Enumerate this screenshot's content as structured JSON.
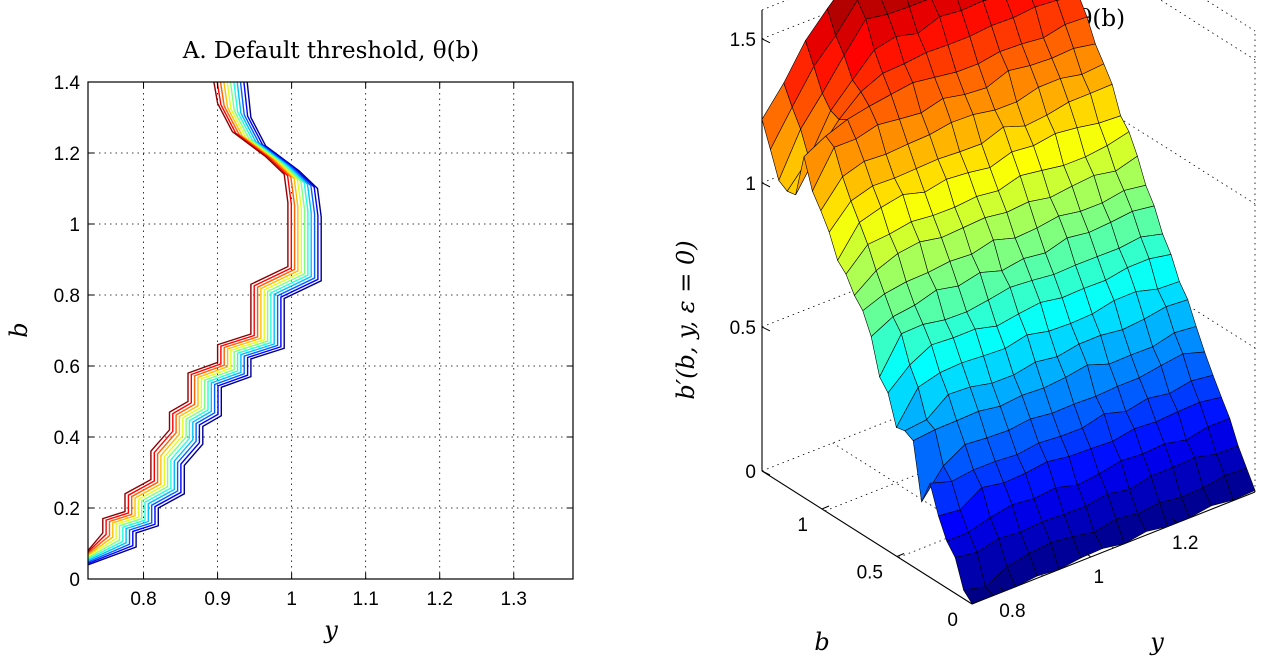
{
  "chart_data": [
    {
      "panel": "A",
      "type": "line",
      "title": "A. Default threshold, θ(b)",
      "xlabel": "y",
      "ylabel": "b",
      "xlim": [
        0.725,
        1.38
      ],
      "ylim": [
        0,
        1.4
      ],
      "xticks": [
        0.8,
        0.9,
        1,
        1.1,
        1.2,
        1.3
      ],
      "yticks": [
        0,
        0.2,
        0.4,
        0.6,
        0.8,
        1,
        1.2,
        1.4
      ],
      "xtick_labels": [
        "0.8",
        "0.9",
        "1",
        "1.1",
        "1.2",
        "1.3"
      ],
      "ytick_labels": [
        "0",
        "0.2",
        "0.4",
        "0.6",
        "0.8",
        "1",
        "1.2",
        "1.4"
      ],
      "grid": "dotted",
      "colormap": "jet",
      "series_count": 11,
      "series_shift_y": 0.004,
      "series_colors": [
        "#00008f",
        "#0000ff",
        "#0060ff",
        "#00bfff",
        "#20ffdf",
        "#80ff80",
        "#dfff20",
        "#ffbf00",
        "#ff6000",
        "#ff0000",
        "#8f0000"
      ],
      "base_curve": [
        {
          "y": 0.725,
          "b": 0.04
        },
        {
          "y": 0.79,
          "b": 0.09
        },
        {
          "y": 0.79,
          "b": 0.13
        },
        {
          "y": 0.82,
          "b": 0.15
        },
        {
          "y": 0.82,
          "b": 0.2
        },
        {
          "y": 0.855,
          "b": 0.24
        },
        {
          "y": 0.855,
          "b": 0.32
        },
        {
          "y": 0.88,
          "b": 0.38
        },
        {
          "y": 0.88,
          "b": 0.43
        },
        {
          "y": 0.905,
          "b": 0.46
        },
        {
          "y": 0.905,
          "b": 0.54
        },
        {
          "y": 0.945,
          "b": 0.57
        },
        {
          "y": 0.945,
          "b": 0.62
        },
        {
          "y": 0.99,
          "b": 0.65
        },
        {
          "y": 0.99,
          "b": 0.79
        },
        {
          "y": 1.04,
          "b": 0.84
        },
        {
          "y": 1.04,
          "b": 1.02
        },
        {
          "y": 1.035,
          "b": 1.1
        },
        {
          "y": 1.01,
          "b": 1.15
        },
        {
          "y": 0.965,
          "b": 1.22
        },
        {
          "y": 0.945,
          "b": 1.3
        },
        {
          "y": 0.94,
          "b": 1.4
        }
      ]
    },
    {
      "panel": "B",
      "type": "surface",
      "title": "B. Debt policy, θ(b)",
      "xlabel": "y",
      "ylabel": "b",
      "zlabel": "b′(b, y, ε = 0)",
      "xlim": [
        0.725,
        1.38
      ],
      "ylim": [
        0,
        1.4
      ],
      "zlim": [
        0,
        1.6
      ],
      "xtick_labels": [
        "0.8",
        "1",
        "1.2"
      ],
      "ytick_labels": [
        "0",
        "0.5",
        "1"
      ],
      "ztick_labels": [
        "0",
        "0.5",
        "1",
        "1.5"
      ],
      "grid": "dotted",
      "colormap": "jet",
      "surface_grid": {
        "nb": 26,
        "ny": 14
      },
      "surface_description": "b′ rises roughly linearly in b from 0 to about 1.6; region of low y and high b shows a lower fold near 1.1"
    }
  ]
}
